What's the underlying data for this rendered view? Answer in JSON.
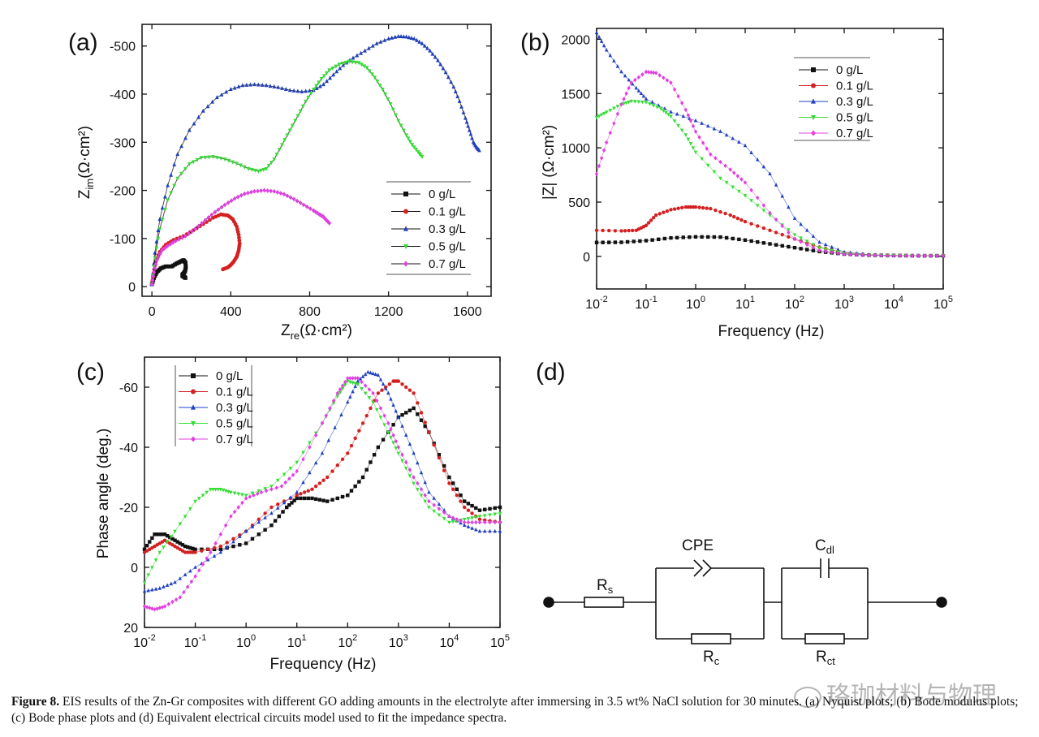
{
  "figure_caption": {
    "label": "Figure 8.",
    "text": "EIS results of the Zn-Gr composites with different GO adding amounts in the electrolyte after immersing in 3.5 wt% NaCl solution for 30 minutes. (a) Nyquist plots; (b) Bode modulus plots; (c) Bode phase plots and (d) Equivalent electrical circuits model used to fit the impedance spectra."
  },
  "watermark": "珞珈材料与物理",
  "colors": {
    "s0": "#111111",
    "s1": "#d42020",
    "s2": "#1f3fbf",
    "s3": "#33dd33",
    "s4": "#e040e0"
  },
  "chart_data": [
    {
      "panel": "(a)",
      "type": "line",
      "title": "Nyquist plots",
      "xlabel": "Z",
      "xlabel_sub": "re",
      "xlabel_unit": "(Ω·cm²)",
      "ylabel": "Z",
      "ylabel_sub": "im",
      "ylabel_unit": "(Ω·cm²)",
      "xlim": [
        -50,
        1720
      ],
      "ylim": [
        20,
        -545
      ],
      "xticks": [
        0,
        400,
        800,
        1200,
        1600
      ],
      "yticks": [
        0,
        -100,
        -200,
        -300,
        -400,
        -500
      ],
      "xtick_labels": [
        "0",
        "400",
        "800",
        "1200",
        "1600"
      ],
      "ytick_labels": [
        "0",
        "-100",
        "-200",
        "-300",
        "-400",
        "-500"
      ],
      "legend_position": "right",
      "series": [
        {
          "name": "0 g/L",
          "color": "s0",
          "marker": "square",
          "x": [
            0,
            10,
            25,
            45,
            70,
            100,
            125,
            145,
            160,
            170,
            172,
            168,
            160,
            155,
            155,
            165,
            170
          ],
          "y": [
            -5,
            -18,
            -30,
            -38,
            -42,
            -42,
            -48,
            -52,
            -55,
            -50,
            -40,
            -32,
            -27,
            -25,
            -22,
            -20,
            -18
          ]
        },
        {
          "name": "0.1 g/L",
          "color": "s1",
          "marker": "circle",
          "x": [
            0,
            8,
            20,
            40,
            70,
            110,
            160,
            210,
            260,
            310,
            350,
            385,
            410,
            430,
            440,
            445,
            440,
            430,
            415,
            400,
            385,
            360
          ],
          "y": [
            -5,
            -28,
            -52,
            -72,
            -87,
            -97,
            -105,
            -117,
            -130,
            -143,
            -150,
            -148,
            -140,
            -125,
            -108,
            -90,
            -75,
            -62,
            -52,
            -45,
            -40,
            -36
          ]
        },
        {
          "name": "0.3 g/L",
          "color": "s2",
          "marker": "triangle",
          "x": [
            0,
            15,
            40,
            80,
            130,
            190,
            260,
            330,
            400,
            460,
            520,
            580,
            640,
            700,
            760,
            820,
            870,
            920,
            970,
            1020,
            1080,
            1140,
            1200,
            1250,
            1290,
            1330,
            1370,
            1410,
            1450,
            1490,
            1530,
            1560,
            1590,
            1610,
            1630,
            1645,
            1660
          ],
          "y": [
            -5,
            -70,
            -140,
            -210,
            -275,
            -325,
            -365,
            -393,
            -410,
            -418,
            -420,
            -418,
            -414,
            -408,
            -405,
            -408,
            -420,
            -440,
            -460,
            -475,
            -490,
            -505,
            -515,
            -520,
            -519,
            -515,
            -505,
            -490,
            -470,
            -445,
            -415,
            -385,
            -350,
            -325,
            -300,
            -290,
            -283
          ]
        },
        {
          "name": "0.5 g/L",
          "color": "s3",
          "marker": "triangle-down",
          "x": [
            0,
            15,
            40,
            80,
            130,
            190,
            250,
            310,
            370,
            430,
            490,
            540,
            580,
            620,
            660,
            700,
            740,
            780,
            820,
            860,
            900,
            950,
            1000,
            1050,
            1090,
            1130,
            1170,
            1210,
            1250,
            1290,
            1320,
            1350,
            1370
          ],
          "y": [
            -5,
            -60,
            -120,
            -180,
            -225,
            -255,
            -268,
            -270,
            -265,
            -256,
            -245,
            -240,
            -245,
            -265,
            -295,
            -325,
            -355,
            -385,
            -410,
            -432,
            -450,
            -462,
            -468,
            -465,
            -455,
            -435,
            -410,
            -380,
            -345,
            -315,
            -295,
            -280,
            -270
          ]
        },
        {
          "name": "0.7 g/L",
          "color": "s4",
          "marker": "diamond",
          "x": [
            0,
            10,
            25,
            50,
            80,
            120,
            170,
            220,
            270,
            320,
            370,
            420,
            470,
            520,
            570,
            620,
            670,
            720,
            770,
            820,
            850,
            870,
            885,
            900
          ],
          "y": [
            -5,
            -30,
            -55,
            -75,
            -85,
            -95,
            -105,
            -120,
            -138,
            -155,
            -170,
            -183,
            -193,
            -198,
            -200,
            -198,
            -192,
            -182,
            -170,
            -158,
            -150,
            -145,
            -138,
            -132
          ]
        }
      ]
    },
    {
      "panel": "(b)",
      "type": "line",
      "title": "Bode modulus plots",
      "xlabel": "Frequency (Hz)",
      "ylabel": "|Z|",
      "ylabel_unit": "(Ω·cm²)",
      "xscale": "log",
      "xlim": [
        -2,
        5
      ],
      "ylim": [
        -300,
        2100
      ],
      "xtick_exponents": [
        -2,
        -1,
        0,
        1,
        2,
        3,
        4,
        5
      ],
      "xtick_labels": [
        "10",
        "10",
        "10",
        "10",
        "10",
        "10",
        "10",
        "10"
      ],
      "xtick_powers": [
        "-2",
        "-1",
        "0",
        "1",
        "2",
        "3",
        "4",
        "5"
      ],
      "yticks": [
        0,
        500,
        1000,
        1500,
        2000
      ],
      "ytick_labels": [
        "0",
        "500",
        "1000",
        "1500",
        "2000"
      ],
      "legend_position": "top-right",
      "series": [
        {
          "name": "0 g/L",
          "color": "s0",
          "marker": "square",
          "logf": [
            -2,
            -1.5,
            -1,
            -0.5,
            0,
            0.5,
            1,
            1.5,
            2,
            2.5,
            3,
            3.5,
            4,
            4.5,
            5
          ],
          "y": [
            128,
            130,
            145,
            170,
            180,
            178,
            150,
            115,
            80,
            45,
            22,
            12,
            8,
            6,
            6
          ]
        },
        {
          "name": "0.1 g/L",
          "color": "s1",
          "marker": "circle",
          "logf": [
            -2,
            -1.5,
            -1.2,
            -1,
            -0.8,
            -0.5,
            -0.2,
            0,
            0.3,
            0.7,
            1,
            1.5,
            2,
            2.5,
            3,
            3.5,
            4,
            4.5,
            5
          ],
          "y": [
            240,
            235,
            240,
            285,
            380,
            430,
            455,
            455,
            440,
            380,
            320,
            240,
            160,
            85,
            35,
            15,
            8,
            6,
            6
          ]
        },
        {
          "name": "0.3 g/L",
          "color": "s2",
          "marker": "triangle",
          "logf": [
            -2,
            -1.8,
            -1.5,
            -1.2,
            -1,
            -0.5,
            0,
            0.5,
            1,
            1.5,
            2,
            2.5,
            3,
            3.5,
            4,
            4.5,
            5
          ],
          "y": [
            2060,
            1900,
            1700,
            1550,
            1450,
            1330,
            1250,
            1150,
            1020,
            760,
            350,
            130,
            40,
            15,
            8,
            6,
            6
          ]
        },
        {
          "name": "0.5 g/L",
          "color": "s3",
          "marker": "triangle-down",
          "logf": [
            -2,
            -1.8,
            -1.5,
            -1.3,
            -1,
            -0.7,
            -0.5,
            -0.2,
            0,
            0.5,
            1,
            1.5,
            2,
            2.5,
            3,
            3.5,
            4,
            4.5,
            5
          ],
          "y": [
            1280,
            1330,
            1400,
            1430,
            1420,
            1360,
            1290,
            1120,
            960,
            720,
            560,
            380,
            200,
            80,
            30,
            12,
            8,
            6,
            6
          ]
        },
        {
          "name": "0.7 g/L",
          "color": "s4",
          "marker": "diamond",
          "logf": [
            -2,
            -1.8,
            -1.5,
            -1.3,
            -1,
            -0.8,
            -0.5,
            -0.2,
            0,
            0.3,
            0.7,
            1,
            1.5,
            2,
            2.5,
            3,
            3.5,
            4,
            4.5,
            5
          ],
          "y": [
            760,
            1050,
            1400,
            1600,
            1700,
            1690,
            1600,
            1350,
            1150,
            940,
            800,
            680,
            400,
            160,
            55,
            20,
            10,
            6,
            6,
            6
          ]
        }
      ]
    },
    {
      "panel": "(c)",
      "type": "line",
      "title": "Bode phase plots",
      "xlabel": "Frequency (Hz)",
      "ylabel": "Phase angle (deg.)",
      "xscale": "log",
      "xlim": [
        -2,
        5
      ],
      "ylim": [
        20,
        -70
      ],
      "xtick_exponents": [
        -2,
        -1,
        0,
        1,
        2,
        3,
        4,
        5
      ],
      "xtick_labels": [
        "10",
        "10",
        "10",
        "10",
        "10",
        "10",
        "10",
        "10"
      ],
      "xtick_powers": [
        "-2",
        "-1",
        "0",
        "1",
        "2",
        "3",
        "4",
        "5"
      ],
      "yticks": [
        20,
        0,
        -20,
        -40,
        -60
      ],
      "ytick_labels": [
        "20",
        "0",
        "-20",
        "-40",
        "-60"
      ],
      "legend_position": "top-left",
      "series": [
        {
          "name": "0 g/L",
          "color": "s0",
          "marker": "square",
          "logf": [
            -2,
            -1.8,
            -1.6,
            -1.4,
            -1.2,
            -1,
            -0.5,
            0,
            0.5,
            0.8,
            1,
            1.3,
            1.6,
            2,
            2.3,
            2.6,
            3,
            3.3,
            3.6,
            4,
            4.3,
            4.6,
            5
          ],
          "y": [
            -6,
            -11,
            -11,
            -9,
            -7,
            -6,
            -6,
            -8,
            -14,
            -20,
            -23,
            -23,
            -22,
            -24,
            -30,
            -40,
            -50,
            -53,
            -45,
            -30,
            -22,
            -19,
            -20
          ]
        },
        {
          "name": "0.1 g/L",
          "color": "s1",
          "marker": "circle",
          "logf": [
            -2,
            -1.8,
            -1.6,
            -1.4,
            -1.2,
            -1,
            -0.5,
            0,
            0.5,
            1,
            1.3,
            1.6,
            2,
            2.3,
            2.6,
            2.9,
            3,
            3.3,
            3.6,
            4,
            4.3,
            4.6,
            5
          ],
          "y": [
            -5,
            -7,
            -9,
            -7,
            -5,
            -5,
            -7,
            -12,
            -20,
            -24,
            -26,
            -30,
            -38,
            -48,
            -58,
            -62,
            -62,
            -58,
            -45,
            -28,
            -20,
            -16,
            -15
          ]
        },
        {
          "name": "0.3 g/L",
          "color": "s2",
          "marker": "triangle",
          "logf": [
            -2,
            -1.7,
            -1.4,
            -1,
            -0.5,
            0,
            0.5,
            1,
            1.5,
            2,
            2.2,
            2.4,
            2.6,
            2.8,
            3,
            3.3,
            3.6,
            4,
            4.3,
            4.6,
            5
          ],
          "y": [
            8,
            7,
            5,
            0,
            -5,
            -12,
            -18,
            -25,
            -38,
            -55,
            -62,
            -65,
            -64,
            -58,
            -50,
            -38,
            -25,
            -17,
            -14,
            -12,
            -12
          ]
        },
        {
          "name": "0.5 g/L",
          "color": "s3",
          "marker": "triangle-down",
          "logf": [
            -2,
            -1.7,
            -1.4,
            -1,
            -0.7,
            -0.5,
            -0.3,
            0,
            0.5,
            1,
            1.5,
            1.8,
            2,
            2.2,
            2.5,
            2.8,
            3,
            3.3,
            3.6,
            4,
            4.3,
            4.6,
            5
          ],
          "y": [
            5,
            -5,
            -12,
            -22,
            -26,
            -26,
            -25,
            -24,
            -27,
            -35,
            -48,
            -57,
            -62,
            -61,
            -55,
            -45,
            -38,
            -28,
            -20,
            -15,
            -16,
            -17,
            -18
          ]
        },
        {
          "name": "0.7 g/L",
          "color": "s4",
          "marker": "diamond",
          "logf": [
            -2,
            -1.8,
            -1.6,
            -1.3,
            -1,
            -0.7,
            -0.3,
            0,
            0.3,
            0.7,
            1,
            1.5,
            1.8,
            2,
            2.2,
            2.5,
            2.8,
            3,
            3.3,
            3.6,
            4,
            4.3,
            4.6,
            5
          ],
          "y": [
            13,
            14,
            13,
            10,
            3,
            -5,
            -17,
            -23,
            -25,
            -27,
            -32,
            -48,
            -58,
            -63,
            -63,
            -58,
            -48,
            -40,
            -30,
            -22,
            -17,
            -15,
            -15,
            -15
          ]
        }
      ]
    }
  ],
  "circuit": {
    "panel": "(d)",
    "rs_label": "R",
    "rs_sub": "s",
    "cpe_label": "CPE",
    "rc_label": "R",
    "rc_sub": "c",
    "cdl_label": "C",
    "cdl_sub": "dl",
    "rct_label": "R",
    "rct_sub": "ct"
  }
}
